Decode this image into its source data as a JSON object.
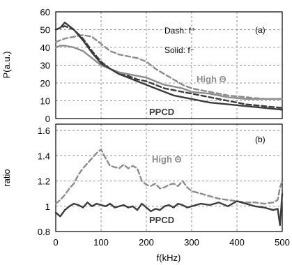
{
  "chart_data": [
    {
      "panel_label": "(a)",
      "type": "line",
      "ylabel": "P(a.u.)",
      "xlim": [
        0,
        500
      ],
      "ylim": [
        0,
        60
      ],
      "xticks": [
        0,
        100,
        200,
        300,
        400,
        500
      ],
      "yticks": [
        0,
        10,
        20,
        30,
        40,
        50,
        60
      ],
      "yticklabels": [
        "0",
        "10",
        "20",
        "30",
        "40",
        "50",
        "60"
      ],
      "grid": true,
      "annotations": [
        "Dash: f⁺",
        "Solid: f⁻",
        "High Θ",
        "PPCD"
      ],
      "series": [
        {
          "name": "High Θ",
          "line": "dash",
          "color": "#8c8c8c",
          "x": [
            0,
            10,
            20,
            40,
            60,
            80,
            100,
            120,
            140,
            160,
            180,
            200,
            220,
            240,
            260,
            280,
            300,
            340,
            380,
            420,
            460,
            500
          ],
          "y": [
            43,
            44,
            45,
            46,
            47,
            46,
            42,
            38,
            36,
            35,
            34,
            32,
            28,
            25,
            22,
            19,
            17,
            15,
            13,
            12,
            11,
            11
          ]
        },
        {
          "name": "High Θ",
          "line": "solid",
          "color": "#8c8c8c",
          "x": [
            0,
            10,
            20,
            40,
            60,
            80,
            100,
            120,
            140,
            160,
            180,
            200,
            220,
            240,
            260,
            280,
            300,
            340,
            380,
            420,
            460,
            500
          ],
          "y": [
            40,
            41,
            41,
            40,
            38,
            34,
            30,
            28,
            26,
            25,
            24,
            23,
            21,
            19,
            18,
            17,
            15,
            14,
            12,
            11,
            11,
            11
          ]
        },
        {
          "name": "PPCD",
          "line": "dash",
          "color": "#3c3c3c",
          "x": [
            0,
            10,
            20,
            40,
            60,
            80,
            100,
            120,
            140,
            160,
            180,
            200,
            220,
            240,
            260,
            280,
            300,
            340,
            380,
            420,
            460,
            500
          ],
          "y": [
            50,
            51,
            52,
            50,
            45,
            38,
            32,
            28,
            25,
            24,
            22,
            21,
            19,
            17,
            16,
            15,
            14,
            12,
            10,
            8,
            7,
            6
          ]
        },
        {
          "name": "PPCD",
          "line": "solid",
          "color": "#3c3c3c",
          "x": [
            0,
            10,
            20,
            30,
            40,
            60,
            80,
            100,
            120,
            140,
            160,
            180,
            200,
            220,
            240,
            260,
            280,
            300,
            340,
            380,
            420,
            460,
            500
          ],
          "y": [
            50,
            51,
            54,
            52,
            50,
            44,
            37,
            31,
            28,
            25,
            23,
            21,
            19,
            17,
            15,
            13,
            12,
            11,
            9,
            8,
            7,
            6,
            5
          ]
        }
      ]
    },
    {
      "panel_label": "(b)",
      "type": "line",
      "xlabel": "f(kHz)",
      "ylabel": "ratio",
      "xlim": [
        0,
        500
      ],
      "ylim": [
        0.8,
        1.65
      ],
      "xticks": [
        0,
        100,
        200,
        300,
        400,
        500
      ],
      "xticklabels": [
        "0",
        "100",
        "200",
        "300",
        "400",
        "500"
      ],
      "yticks": [
        0.8,
        1,
        1.2,
        1.4,
        1.6
      ],
      "yticklabels": [
        "0.8",
        "1",
        "1.2",
        "1.4",
        "1.6"
      ],
      "grid": true,
      "annotations": [
        "High Θ",
        "PPCD"
      ],
      "series": [
        {
          "name": "High Θ",
          "line": "dash",
          "color": "#8c8c8c",
          "x": [
            0,
            10,
            20,
            30,
            40,
            50,
            60,
            70,
            80,
            90,
            100,
            110,
            120,
            130,
            140,
            150,
            160,
            170,
            180,
            190,
            200,
            210,
            220,
            230,
            240,
            250,
            260,
            270,
            280,
            290,
            300,
            320,
            340,
            360,
            380,
            400,
            420,
            440,
            460,
            480,
            490,
            495,
            500
          ],
          "y": [
            1.02,
            1.05,
            1.09,
            1.14,
            1.18,
            1.25,
            1.3,
            1.34,
            1.38,
            1.42,
            1.45,
            1.38,
            1.32,
            1.31,
            1.3,
            1.33,
            1.3,
            1.32,
            1.3,
            1.2,
            1.17,
            1.16,
            1.18,
            1.14,
            1.15,
            1.17,
            1.18,
            1.16,
            1.2,
            1.15,
            1.12,
            1.1,
            1.08,
            1.06,
            1.05,
            1.04,
            1.03,
            1.03,
            1.02,
            1.03,
            1.05,
            1.15,
            1.2
          ]
        },
        {
          "name": "PPCD",
          "line": "solid",
          "color": "#3c3c3c",
          "x": [
            0,
            10,
            20,
            30,
            40,
            50,
            60,
            70,
            80,
            90,
            100,
            110,
            120,
            130,
            140,
            150,
            160,
            170,
            180,
            190,
            200,
            210,
            220,
            230,
            240,
            250,
            260,
            270,
            280,
            290,
            300,
            320,
            340,
            360,
            380,
            400,
            420,
            440,
            460,
            480,
            490,
            495,
            500
          ],
          "y": [
            0.95,
            0.92,
            0.97,
            1.0,
            1.02,
            1.01,
            0.99,
            1.03,
            1.0,
            1.02,
            1.01,
            1.0,
            1.02,
            0.99,
            1.0,
            1.01,
            0.99,
            1.0,
            0.97,
            1.02,
            0.99,
            0.96,
            0.98,
            0.97,
            1.0,
            1.01,
            0.99,
            1.02,
            1.01,
            0.99,
            1.0,
            1.02,
            1.01,
            1.03,
            1.0,
            1.04,
            1.02,
            1.0,
            0.99,
            0.97,
            0.98,
            0.85,
            1.1
          ]
        }
      ]
    }
  ]
}
